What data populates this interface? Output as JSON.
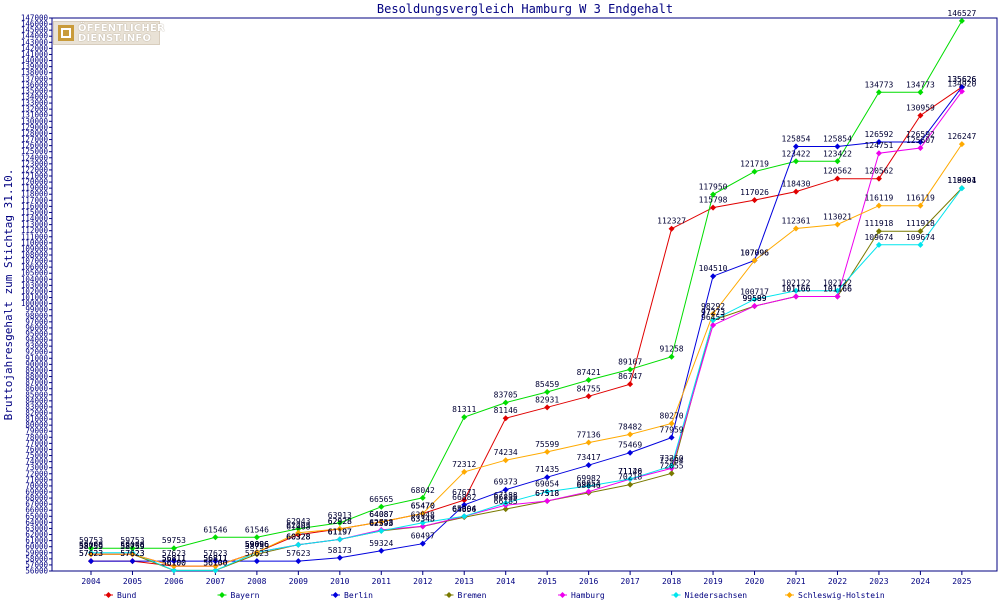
{
  "logo": {
    "line1": "ÖFFENTLICHER",
    "line2": "DIENST.INFO"
  },
  "chart_data": {
    "type": "line",
    "title": "Besoldungsvergleich Hamburg W 3 Endgehalt",
    "ylabel": "Bruttojahresgehalt zum Stichtag 31.10.",
    "xlabel": "",
    "ylim": [
      56000,
      147000
    ],
    "ytick_step": 1000,
    "grid": false,
    "legend_position": "bottom",
    "categories": [
      "2004",
      "2005",
      "2006",
      "2007",
      "2008",
      "2009",
      "2010",
      "2011",
      "2012",
      "2013",
      "2014",
      "2015",
      "2016",
      "2017",
      "2018",
      "2019",
      "2020",
      "2021",
      "2022",
      "2023",
      "2024",
      "2025"
    ],
    "series": [
      {
        "name": "Bund",
        "color": "#e00000",
        "values": [
          57623,
          57623,
          56811,
          56811,
          59096,
          61968,
          62928,
          64087,
          65470,
          67671,
          81146,
          82931,
          84755,
          86747,
          112327,
          115798,
          117026,
          118430,
          120562,
          120562,
          130959,
          135626
        ]
      },
      {
        "name": "Bayern",
        "color": "#00dd00",
        "values": [
          59753,
          59753,
          59753,
          61546,
          61546,
          62943,
          63913,
          66565,
          68042,
          81311,
          83705,
          85459,
          87421,
          89167,
          91258,
          117950,
          121719,
          123422,
          123422,
          134773,
          134773,
          146527
        ]
      },
      {
        "name": "Berlin",
        "color": "#0000dd",
        "values": [
          57623,
          57623,
          57623,
          57623,
          57623,
          57623,
          58173,
          59324,
          60497,
          66882,
          69373,
          71435,
          73417,
          75469,
          77959,
          104510,
          107096,
          125854,
          125854,
          126592,
          126592,
          135626
        ]
      },
      {
        "name": "Bremen",
        "color": "#7a7a00",
        "values": [
          58759,
          58759,
          56100,
          56100,
          58759,
          60328,
          61197,
          62593,
          63343,
          64856,
          66185,
          67518,
          68846,
          70218,
          72055,
          97273,
          99589,
          101166,
          101166,
          111918,
          111918,
          119001
        ]
      },
      {
        "name": "Hamburg",
        "color": "#ee00ee",
        "values": [
          58759,
          58759,
          56811,
          56811,
          59096,
          60328,
          61197,
          62758,
          63348,
          65004,
          66835,
          67518,
          69054,
          71126,
          72904,
          96453,
          99599,
          101166,
          101166,
          124751,
          125607,
          134920
        ]
      },
      {
        "name": "Niedersachsen",
        "color": "#00e5ee",
        "values": [
          59008,
          59008,
          56100,
          56100,
          59096,
          60328,
          61197,
          62593,
          63948,
          65004,
          67188,
          69054,
          69982,
          71140,
          73260,
          97273,
          100717,
          102122,
          102122,
          109674,
          109674,
          118994
        ]
      },
      {
        "name": "Schleswig-Holstein",
        "color": "#ffaa00",
        "values": [
          58759,
          58759,
          56811,
          56811,
          59096,
          62293,
          62928,
          64087,
          65470,
          72312,
          74234,
          75599,
          77136,
          78482,
          80270,
          98292,
          107096,
          112361,
          113021,
          116119,
          116119,
          126247
        ]
      }
    ],
    "data_labels": true
  }
}
